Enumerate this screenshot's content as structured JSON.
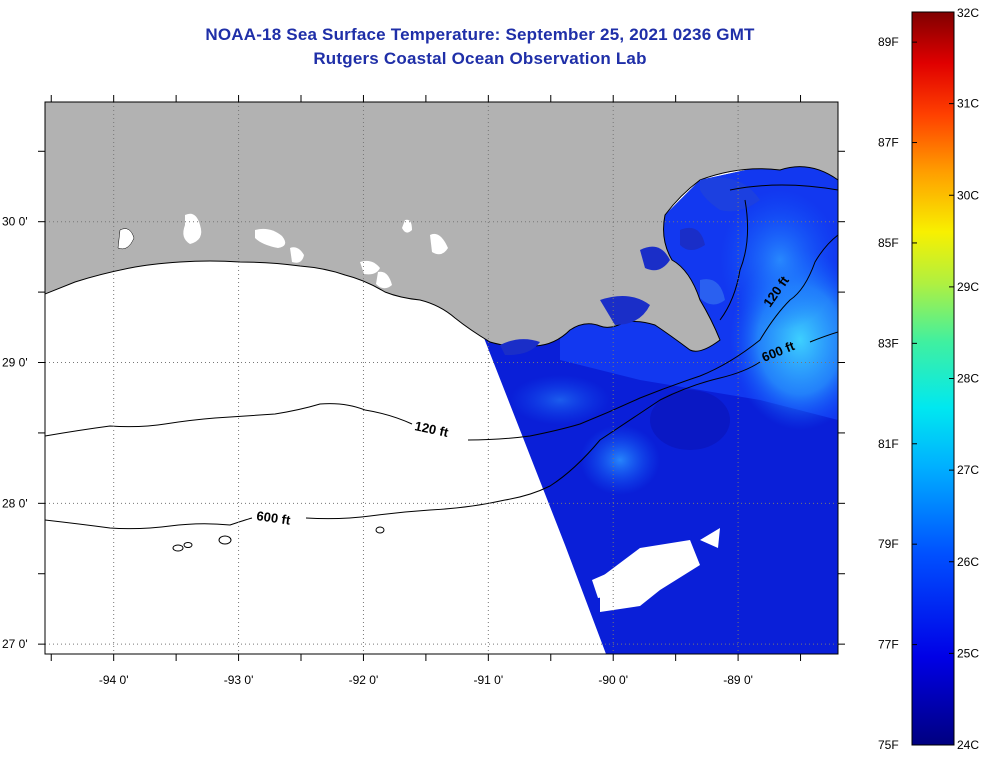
{
  "title_line1": "NOAA-18 Sea Surface Temperature:  September 25, 2021 0236 GMT",
  "title_line2": "Rutgers Coastal Ocean Observation Lab",
  "map": {
    "lon_ticks": [
      {
        "value": -94,
        "label": "-94 0'"
      },
      {
        "value": -93,
        "label": "-93 0'"
      },
      {
        "value": -92,
        "label": "-92 0'"
      },
      {
        "value": -91,
        "label": "-91 0'"
      },
      {
        "value": -90,
        "label": "-90 0'"
      },
      {
        "value": -89,
        "label": "-89 0'"
      }
    ],
    "lat_ticks": [
      {
        "value": 30,
        "label": "30 0'"
      },
      {
        "value": 29,
        "label": "29 0'"
      },
      {
        "value": 28,
        "label": "28 0'"
      },
      {
        "value": 27,
        "label": "27 0'"
      }
    ],
    "lon_range": [
      -94.55,
      -88.2
    ],
    "lat_range": [
      26.93,
      30.85
    ],
    "land_color": "#b2b2b2",
    "contours": [
      {
        "label": "120 ft",
        "depth_ft": 120
      },
      {
        "label": "600 ft",
        "depth_ft": 600
      },
      {
        "label": "120 ft",
        "depth_ft": 120
      },
      {
        "label": "600 ft",
        "depth_ft": 600
      }
    ]
  },
  "colorbar": {
    "f_labels": [
      "89F",
      "87F",
      "85F",
      "83F",
      "81F",
      "79F",
      "77F",
      "75F"
    ],
    "c_labels": [
      "32C",
      "31C",
      "30C",
      "29C",
      "28C",
      "27C",
      "26C",
      "25C",
      "24C"
    ],
    "f_min": 75,
    "f_max": 89.6,
    "c_min": 24,
    "c_max": 32
  }
}
